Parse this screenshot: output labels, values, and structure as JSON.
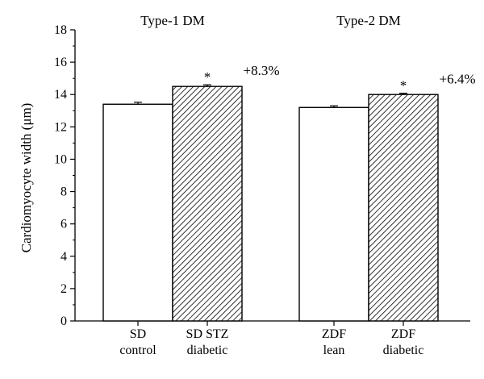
{
  "chart_data": {
    "type": "bar",
    "ylabel": "Cardiomyocyte width (μm)",
    "ylim": [
      0,
      18
    ],
    "yticks": [
      0,
      2,
      4,
      6,
      8,
      10,
      12,
      14,
      16,
      18
    ],
    "groups": [
      {
        "title": "Type-1 DM",
        "bars": [
          {
            "label_lines": [
              "SD",
              "control"
            ],
            "value": 13.4,
            "error": 0.12,
            "fill": "white",
            "star": "",
            "annotation": ""
          },
          {
            "label_lines": [
              "SD STZ",
              "diabetic"
            ],
            "value": 14.5,
            "error": 0.1,
            "fill": "hatched",
            "star": "*",
            "annotation": "+8.3%"
          }
        ]
      },
      {
        "title": "Type-2 DM",
        "bars": [
          {
            "label_lines": [
              "ZDF",
              "lean"
            ],
            "value": 13.2,
            "error": 0.1,
            "fill": "white",
            "star": "",
            "annotation": ""
          },
          {
            "label_lines": [
              "ZDF",
              "diabetic"
            ],
            "value": 14.0,
            "error": 0.08,
            "fill": "hatched",
            "star": "*",
            "annotation": "+6.4%"
          }
        ]
      }
    ],
    "grid": false,
    "legend": "none"
  }
}
